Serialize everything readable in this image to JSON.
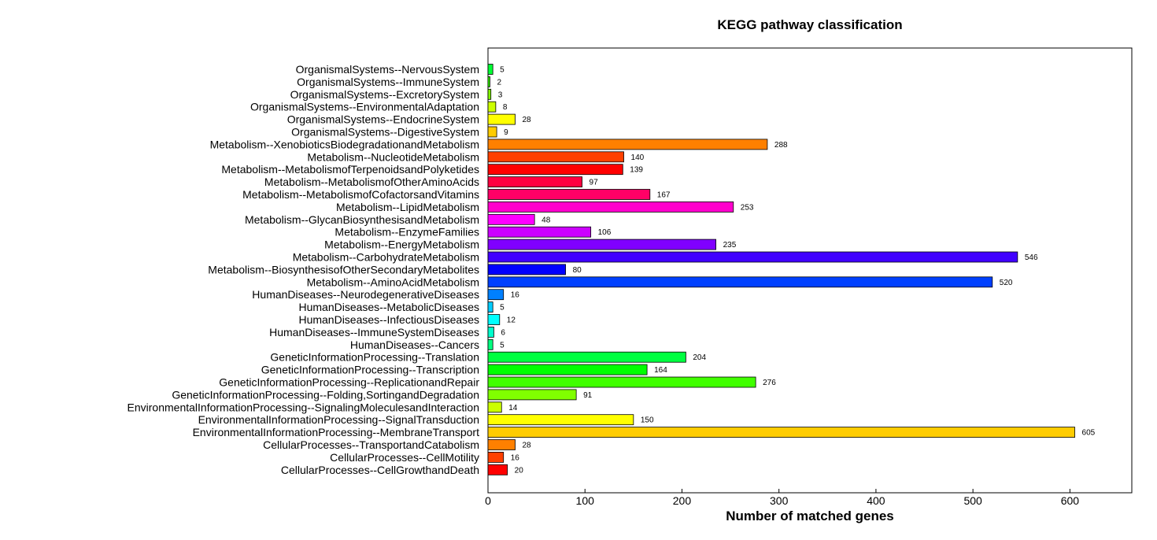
{
  "chart_data": {
    "type": "bar",
    "orientation": "horizontal",
    "title": "KEGG pathway classification",
    "xlabel": "Number of matched genes",
    "ylabel": "",
    "xlim": [
      0,
      665
    ],
    "xticks": [
      0,
      100,
      200,
      300,
      400,
      500,
      600
    ],
    "grid": false,
    "categories": [
      "OrganismalSystems--NervousSystem",
      "OrganismalSystems--ImmuneSystem",
      "OrganismalSystems--ExcretorySystem",
      "OrganismalSystems--EnvironmentalAdaptation",
      "OrganismalSystems--EndocrineSystem",
      "OrganismalSystems--DigestiveSystem",
      "Metabolism--XenobioticsBiodegradationandMetabolism",
      "Metabolism--NucleotideMetabolism",
      "Metabolism--MetabolismofTerpenoidsandPolyketides",
      "Metabolism--MetabolismofOtherAminoAcids",
      "Metabolism--MetabolismofCofactorsandVitamins",
      "Metabolism--LipidMetabolism",
      "Metabolism--GlycanBiosynthesisandMetabolism",
      "Metabolism--EnzymeFamilies",
      "Metabolism--EnergyMetabolism",
      "Metabolism--CarbohydrateMetabolism",
      "Metabolism--BiosynthesisofOtherSecondaryMetabolites",
      "Metabolism--AminoAcidMetabolism",
      "HumanDiseases--NeurodegenerativeDiseases",
      "HumanDiseases--MetabolicDiseases",
      "HumanDiseases--InfectiousDiseases",
      "HumanDiseases--ImmuneSystemDiseases",
      "HumanDiseases--Cancers",
      "GeneticInformationProcessing--Translation",
      "GeneticInformationProcessing--Transcription",
      "GeneticInformationProcessing--ReplicationandRepair",
      "GeneticInformationProcessing--Folding,SortingandDegradation",
      "EnvironmentalInformationProcessing--SignalingMoleculesandInteraction",
      "EnvironmentalInformationProcessing--SignalTransduction",
      "EnvironmentalInformationProcessing--MembraneTransport",
      "CellularProcesses--TransportandCatabolism",
      "CellularProcesses--CellMotility",
      "CellularProcesses--CellGrowthandDeath"
    ],
    "values": [
      5,
      2,
      3,
      8,
      28,
      9,
      288,
      140,
      139,
      97,
      167,
      253,
      48,
      106,
      235,
      546,
      80,
      520,
      16,
      5,
      12,
      6,
      5,
      204,
      164,
      276,
      91,
      14,
      150,
      605,
      28,
      16,
      20
    ],
    "colors": [
      "#00ff33",
      "#33ff00",
      "#80ff00",
      "#ccff00",
      "#ffff00",
      "#ffcc00",
      "#ff8000",
      "#ff4000",
      "#ff0000",
      "#ff0040",
      "#ff0066",
      "#ff00cc",
      "#ff00ff",
      "#cc00ff",
      "#8000ff",
      "#4000ff",
      "#0000ff",
      "#0040ff",
      "#0080ff",
      "#00ccff",
      "#00ffff",
      "#00ffcc",
      "#00ff80",
      "#00ff40",
      "#00ff00",
      "#40ff00",
      "#80ff00",
      "#ccff00",
      "#ffff00",
      "#ffcc00",
      "#ff8000",
      "#ff4000",
      "#ff0000"
    ]
  }
}
